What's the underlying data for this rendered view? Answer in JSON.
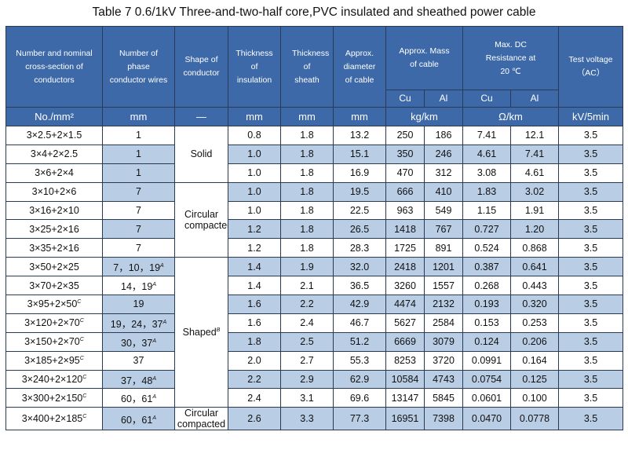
{
  "title": "Table 7    0.6/1kV Three-and-two-half core,PVC insulated and sheathed power cable",
  "headers": {
    "nominal": "Number and nominal cross-section of conductors",
    "wires": "Number of phase conductor wires",
    "shape": "Shape of conductor",
    "insulation": "Thickness of insulation",
    "sheath": "Thickness of sheath",
    "diameter": "Approx. diameter of cable",
    "mass": "Approx. Mass of cable",
    "resistance": "Max. DC Resistance at 20 ℃",
    "voltage": "Test voltage （AC）",
    "cu": "Cu",
    "al": "Al"
  },
  "units": {
    "nominal": "No./mm²",
    "wires": "mm",
    "shape": "—",
    "insulation": "mm",
    "sheath": "mm",
    "diameter": "mm",
    "mass": "kg/km",
    "resistance": "Ω/km",
    "voltage": "kV/5min"
  },
  "shapes": {
    "solid": "Solid",
    "circular": "Circular compacted",
    "shaped": "Shaped",
    "shaped_note": "B",
    "circular_last": "Circular compacted"
  },
  "rows": [
    {
      "size": "3×2.5+2×1.5",
      "note": "",
      "wires": "1",
      "wnote": "",
      "ins": "0.8",
      "sh": "1.8",
      "dia": "13.2",
      "cu_mass": "250",
      "al_mass": "186",
      "cu_r": "7.41",
      "al_r": "12.1",
      "v": "3.5"
    },
    {
      "size": "3×4+2×2.5",
      "note": "",
      "wires": "1",
      "wnote": "",
      "ins": "1.0",
      "sh": "1.8",
      "dia": "15.1",
      "cu_mass": "350",
      "al_mass": "246",
      "cu_r": "4.61",
      "al_r": "7.41",
      "v": "3.5"
    },
    {
      "size": "3×6+2×4",
      "note": "",
      "wires": "1",
      "wnote": "",
      "ins": "1.0",
      "sh": "1.8",
      "dia": "16.9",
      "cu_mass": "470",
      "al_mass": "312",
      "cu_r": "3.08",
      "al_r": "4.61",
      "v": "3.5"
    },
    {
      "size": "3×10+2×6",
      "note": "",
      "wires": "7",
      "wnote": "",
      "ins": "1.0",
      "sh": "1.8",
      "dia": "19.5",
      "cu_mass": "666",
      "al_mass": "410",
      "cu_r": "1.83",
      "al_r": "3.02",
      "v": "3.5"
    },
    {
      "size": "3×16+2×10",
      "note": "",
      "wires": "7",
      "wnote": "",
      "ins": "1.0",
      "sh": "1.8",
      "dia": "22.5",
      "cu_mass": "963",
      "al_mass": "549",
      "cu_r": "1.15",
      "al_r": "1.91",
      "v": "3.5"
    },
    {
      "size": "3×25+2×16",
      "note": "",
      "wires": "7",
      "wnote": "",
      "ins": "1.2",
      "sh": "1.8",
      "dia": "26.5",
      "cu_mass": "1418",
      "al_mass": "767",
      "cu_r": "0.727",
      "al_r": "1.20",
      "v": "3.5"
    },
    {
      "size": "3×35+2×16",
      "note": "",
      "wires": "7",
      "wnote": "",
      "ins": "1.2",
      "sh": "1.8",
      "dia": "28.3",
      "cu_mass": "1725",
      "al_mass": "891",
      "cu_r": "0.524",
      "al_r": "0.868",
      "v": "3.5"
    },
    {
      "size": "3×50+2×25",
      "note": "",
      "wires": "7，10，19",
      "wnote": "A",
      "ins": "1.4",
      "sh": "1.9",
      "dia": "32.0",
      "cu_mass": "2418",
      "al_mass": "1201",
      "cu_r": "0.387",
      "al_r": "0.641",
      "v": "3.5"
    },
    {
      "size": "3×70+2×35",
      "note": "",
      "wires": "14，19",
      "wnote": "A",
      "ins": "1.4",
      "sh": "2.1",
      "dia": "36.5",
      "cu_mass": "3260",
      "al_mass": "1557",
      "cu_r": "0.268",
      "al_r": "0.443",
      "v": "3.5"
    },
    {
      "size": "3×95+2×50",
      "note": "C",
      "wires": "19",
      "wnote": "",
      "ins": "1.6",
      "sh": "2.2",
      "dia": "42.9",
      "cu_mass": "4474",
      "al_mass": "2132",
      "cu_r": "0.193",
      "al_r": "0.320",
      "v": "3.5"
    },
    {
      "size": "3×120+2×70",
      "note": "C",
      "wires": "19，24，37",
      "wnote": "A",
      "ins": "1.6",
      "sh": "2.4",
      "dia": "46.7",
      "cu_mass": "5627",
      "al_mass": "2584",
      "cu_r": "0.153",
      "al_r": "0.253",
      "v": "3.5"
    },
    {
      "size": "3×150+2×70",
      "note": "C",
      "wires": "30，37",
      "wnote": "A",
      "ins": "1.8",
      "sh": "2.5",
      "dia": "51.2",
      "cu_mass": "6669",
      "al_mass": "3079",
      "cu_r": "0.124",
      "al_r": "0.206",
      "v": "3.5"
    },
    {
      "size": "3×185+2×95",
      "note": "C",
      "wires": "37",
      "wnote": "",
      "ins": "2.0",
      "sh": "2.7",
      "dia": "55.3",
      "cu_mass": "8253",
      "al_mass": "3720",
      "cu_r": "0.0991",
      "al_r": "0.164",
      "v": "3.5"
    },
    {
      "size": "3×240+2×120",
      "note": "C",
      "wires": "37，48",
      "wnote": "A",
      "ins": "2.2",
      "sh": "2.9",
      "dia": "62.9",
      "cu_mass": "10584",
      "al_mass": "4743",
      "cu_r": "0.0754",
      "al_r": "0.125",
      "v": "3.5"
    },
    {
      "size": "3×300+2×150",
      "note": "C",
      "wires": "60，61",
      "wnote": "A",
      "ins": "2.4",
      "sh": "3.1",
      "dia": "69.6",
      "cu_mass": "13147",
      "al_mass": "5845",
      "cu_r": "0.0601",
      "al_r": "0.100",
      "v": "3.5"
    },
    {
      "size": "3×400+2×185",
      "note": "C",
      "wires": "60，61",
      "wnote": "A",
      "ins": "2.6",
      "sh": "3.3",
      "dia": "77.3",
      "cu_mass": "16951",
      "al_mass": "7398",
      "cu_r": "0.0470",
      "al_r": "0.0778",
      "v": "3.5"
    }
  ]
}
